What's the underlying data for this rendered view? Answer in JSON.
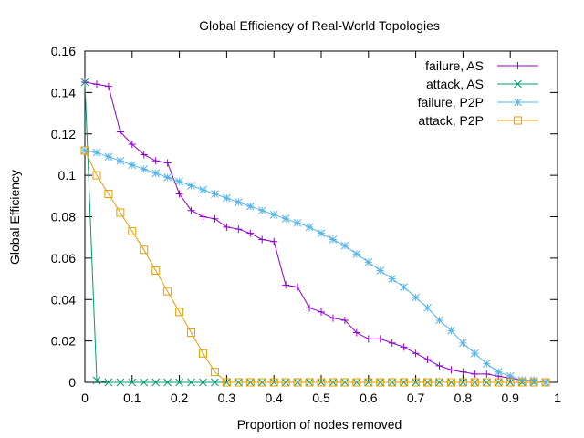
{
  "chart_data": {
    "type": "line",
    "title": "Global Efficiency of Real-World Topologies",
    "xlabel": "Proportion of nodes removed",
    "ylabel": "Global Efficiency",
    "xlim": [
      0,
      1
    ],
    "ylim": [
      0,
      0.16
    ],
    "xticks": [
      0,
      0.1,
      0.2,
      0.3,
      0.4,
      0.5,
      0.6,
      0.7,
      0.8,
      0.9,
      1
    ],
    "xtick_labels": [
      "0",
      "0.1",
      "0.2",
      "0.3",
      "0.4",
      "0.5",
      "0.6",
      "0.7",
      "0.8",
      "0.9",
      "1"
    ],
    "yticks": [
      0,
      0.02,
      0.04,
      0.06,
      0.08,
      0.1,
      0.12,
      0.14,
      0.16
    ],
    "ytick_labels": [
      "0",
      "0.02",
      "0.04",
      "0.06",
      "0.08",
      "0.1",
      "0.12",
      "0.14",
      "0.16"
    ],
    "grid": false,
    "legend_position": "top-right",
    "series": [
      {
        "name": "failure, AS",
        "color": "#9400d3",
        "marker": "plus",
        "x": [
          0,
          0.025,
          0.05,
          0.075,
          0.1,
          0.125,
          0.15,
          0.175,
          0.2,
          0.225,
          0.25,
          0.275,
          0.3,
          0.325,
          0.35,
          0.375,
          0.4,
          0.425,
          0.45,
          0.475,
          0.5,
          0.525,
          0.55,
          0.575,
          0.6,
          0.625,
          0.65,
          0.675,
          0.7,
          0.725,
          0.75,
          0.775,
          0.8,
          0.825,
          0.85,
          0.875,
          0.9,
          0.925,
          0.95,
          0.975
        ],
        "y": [
          0.145,
          0.144,
          0.143,
          0.121,
          0.115,
          0.11,
          0.107,
          0.106,
          0.091,
          0.083,
          0.08,
          0.079,
          0.075,
          0.074,
          0.072,
          0.069,
          0.068,
          0.047,
          0.046,
          0.036,
          0.034,
          0.031,
          0.03,
          0.024,
          0.021,
          0.021,
          0.019,
          0.017,
          0.014,
          0.011,
          0.008,
          0.006,
          0.005,
          0.004,
          0.004,
          0.003,
          0.002,
          0.001,
          0.001,
          0.0
        ]
      },
      {
        "name": "attack, AS",
        "color": "#009e73",
        "marker": "cross",
        "x": [
          0,
          0.025,
          0.05,
          0.075,
          0.1,
          0.125,
          0.15,
          0.175,
          0.2,
          0.225,
          0.25,
          0.275,
          0.3,
          0.325,
          0.35,
          0.375,
          0.4,
          0.425,
          0.45,
          0.475,
          0.5,
          0.525,
          0.55,
          0.575,
          0.6,
          0.625,
          0.65,
          0.675,
          0.7,
          0.725,
          0.75,
          0.775,
          0.8,
          0.825,
          0.85,
          0.875,
          0.9,
          0.925,
          0.95,
          0.975
        ],
        "y": [
          0.145,
          0.001,
          0.0,
          0.0,
          0.0,
          0.0,
          0.0,
          0.0,
          0.0,
          0.0,
          0.0,
          0.0,
          0.0,
          0.0,
          0.0,
          0.0,
          0.0,
          0.0,
          0.0,
          0.0,
          0.0,
          0.0,
          0.0,
          0.0,
          0.0,
          0.0,
          0.0,
          0.0,
          0.0,
          0.0,
          0.0,
          0.0,
          0.0,
          0.0,
          0.0,
          0.0,
          0.0,
          0.0,
          0.0,
          0.0
        ]
      },
      {
        "name": "failure, P2P",
        "color": "#56b4e9",
        "marker": "star",
        "x": [
          0,
          0.025,
          0.05,
          0.075,
          0.1,
          0.125,
          0.15,
          0.175,
          0.2,
          0.225,
          0.25,
          0.275,
          0.3,
          0.325,
          0.35,
          0.375,
          0.4,
          0.425,
          0.45,
          0.475,
          0.5,
          0.525,
          0.55,
          0.575,
          0.6,
          0.625,
          0.65,
          0.675,
          0.7,
          0.725,
          0.75,
          0.775,
          0.8,
          0.825,
          0.85,
          0.875,
          0.9,
          0.925,
          0.95,
          0.975
        ],
        "y": [
          0.112,
          0.111,
          0.109,
          0.107,
          0.105,
          0.103,
          0.101,
          0.099,
          0.097,
          0.095,
          0.093,
          0.091,
          0.089,
          0.087,
          0.085,
          0.083,
          0.081,
          0.079,
          0.077,
          0.075,
          0.072,
          0.069,
          0.066,
          0.062,
          0.058,
          0.054,
          0.05,
          0.046,
          0.041,
          0.036,
          0.03,
          0.025,
          0.019,
          0.014,
          0.009,
          0.005,
          0.003,
          0.001,
          0.001,
          0.0
        ]
      },
      {
        "name": "attack, P2P",
        "color": "#e69f00",
        "marker": "square",
        "x": [
          0,
          0.025,
          0.05,
          0.075,
          0.1,
          0.125,
          0.15,
          0.175,
          0.2,
          0.225,
          0.25,
          0.275,
          0.3,
          0.325,
          0.35,
          0.375,
          0.4,
          0.425,
          0.45,
          0.475,
          0.5,
          0.525,
          0.55,
          0.575,
          0.6,
          0.625,
          0.65,
          0.675,
          0.7,
          0.725,
          0.75,
          0.775,
          0.8,
          0.825,
          0.85,
          0.875,
          0.9,
          0.925,
          0.95,
          0.975
        ],
        "y": [
          0.112,
          0.1,
          0.091,
          0.082,
          0.073,
          0.064,
          0.054,
          0.044,
          0.034,
          0.024,
          0.014,
          0.005,
          0.0,
          0.0,
          0.0,
          0.0,
          0.0,
          0.0,
          0.0,
          0.0,
          0.0,
          0.0,
          0.0,
          0.0,
          0.0,
          0.0,
          0.0,
          0.0,
          0.0,
          0.0,
          0.0,
          0.0,
          0.0,
          0.0,
          0.0,
          0.0,
          0.0,
          0.0,
          0.0,
          0.0
        ]
      }
    ]
  }
}
